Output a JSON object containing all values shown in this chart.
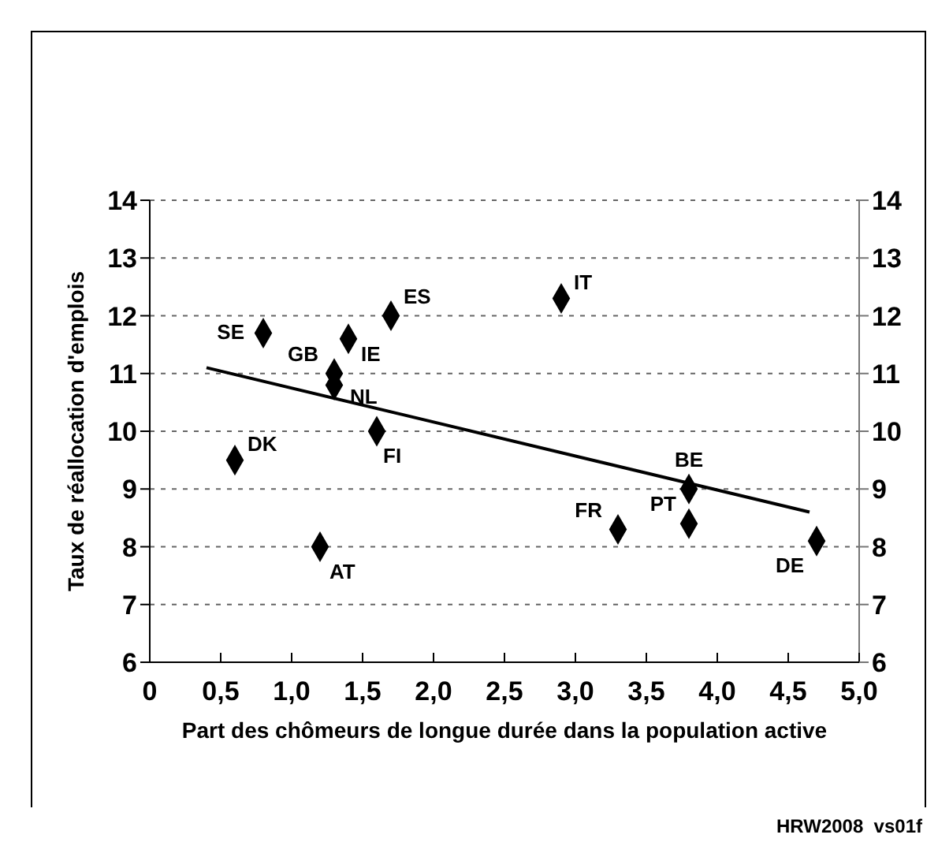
{
  "chart_data": {
    "type": "scatter",
    "xlabel": "Part des chômeurs de longue durée dans la population active",
    "ylabel": "Taux de réallocation d'emplois",
    "xlim": [
      0,
      5
    ],
    "xticks": [
      {
        "value": 0,
        "label": "0"
      },
      {
        "value": 0.5,
        "label": "0,5"
      },
      {
        "value": 1,
        "label": "1,0"
      },
      {
        "value": 1.5,
        "label": "1,5"
      },
      {
        "value": 2,
        "label": "2,0"
      },
      {
        "value": 2.5,
        "label": "2,5"
      },
      {
        "value": 3,
        "label": "3,0"
      },
      {
        "value": 3.5,
        "label": "3,5"
      },
      {
        "value": 4,
        "label": "4,0"
      },
      {
        "value": 4.5,
        "label": "4,5"
      },
      {
        "value": 5,
        "label": "5,0"
      }
    ],
    "ylim": [
      6,
      14
    ],
    "yticks": [
      6,
      7,
      8,
      9,
      10,
      11,
      12,
      13,
      14
    ],
    "y2lim": [
      6,
      14
    ],
    "y2ticks": [
      6,
      7,
      8,
      9,
      10,
      11,
      12,
      13,
      14
    ],
    "grid": "y",
    "series": [
      {
        "color": "#000000",
        "marker": "diamond",
        "x": [
          0.8,
          1.7,
          1.4,
          1.3,
          1.3,
          1.6,
          0.6,
          1.2,
          2.9,
          3.8,
          3.8,
          3.3,
          4.7
        ],
        "values": [
          11.7,
          12.0,
          11.6,
          11.0,
          10.8,
          10.0,
          9.5,
          8.0,
          12.3,
          9.0,
          8.4,
          8.3,
          8.1
        ]
      },
      {
        "type": "line",
        "color": "#000000",
        "marker": "none",
        "x": [
          0.4,
          4.65
        ],
        "values": [
          11.1,
          8.6
        ]
      }
    ],
    "annotations": [
      {
        "text": "SE",
        "x": 0.8,
        "y": 11.7
      },
      {
        "text": "ES",
        "x": 1.7,
        "y": 12.0
      },
      {
        "text": "IE",
        "x": 1.4,
        "y": 11.6
      },
      {
        "text": "GB",
        "x": 1.3,
        "y": 11.0
      },
      {
        "text": "NL",
        "x": 1.3,
        "y": 10.8
      },
      {
        "text": "FI",
        "x": 1.6,
        "y": 10.0
      },
      {
        "text": "DK",
        "x": 0.6,
        "y": 9.5
      },
      {
        "text": "AT",
        "x": 1.2,
        "y": 8.0
      },
      {
        "text": "IT",
        "x": 2.9,
        "y": 12.3
      },
      {
        "text": "BE",
        "x": 3.8,
        "y": 9.0
      },
      {
        "text": "PT",
        "x": 3.8,
        "y": 8.4
      },
      {
        "text": "FR",
        "x": 3.3,
        "y": 8.3
      },
      {
        "text": "DE",
        "x": 4.7,
        "y": 8.1
      },
      "HRW2008  vs01f"
    ]
  }
}
